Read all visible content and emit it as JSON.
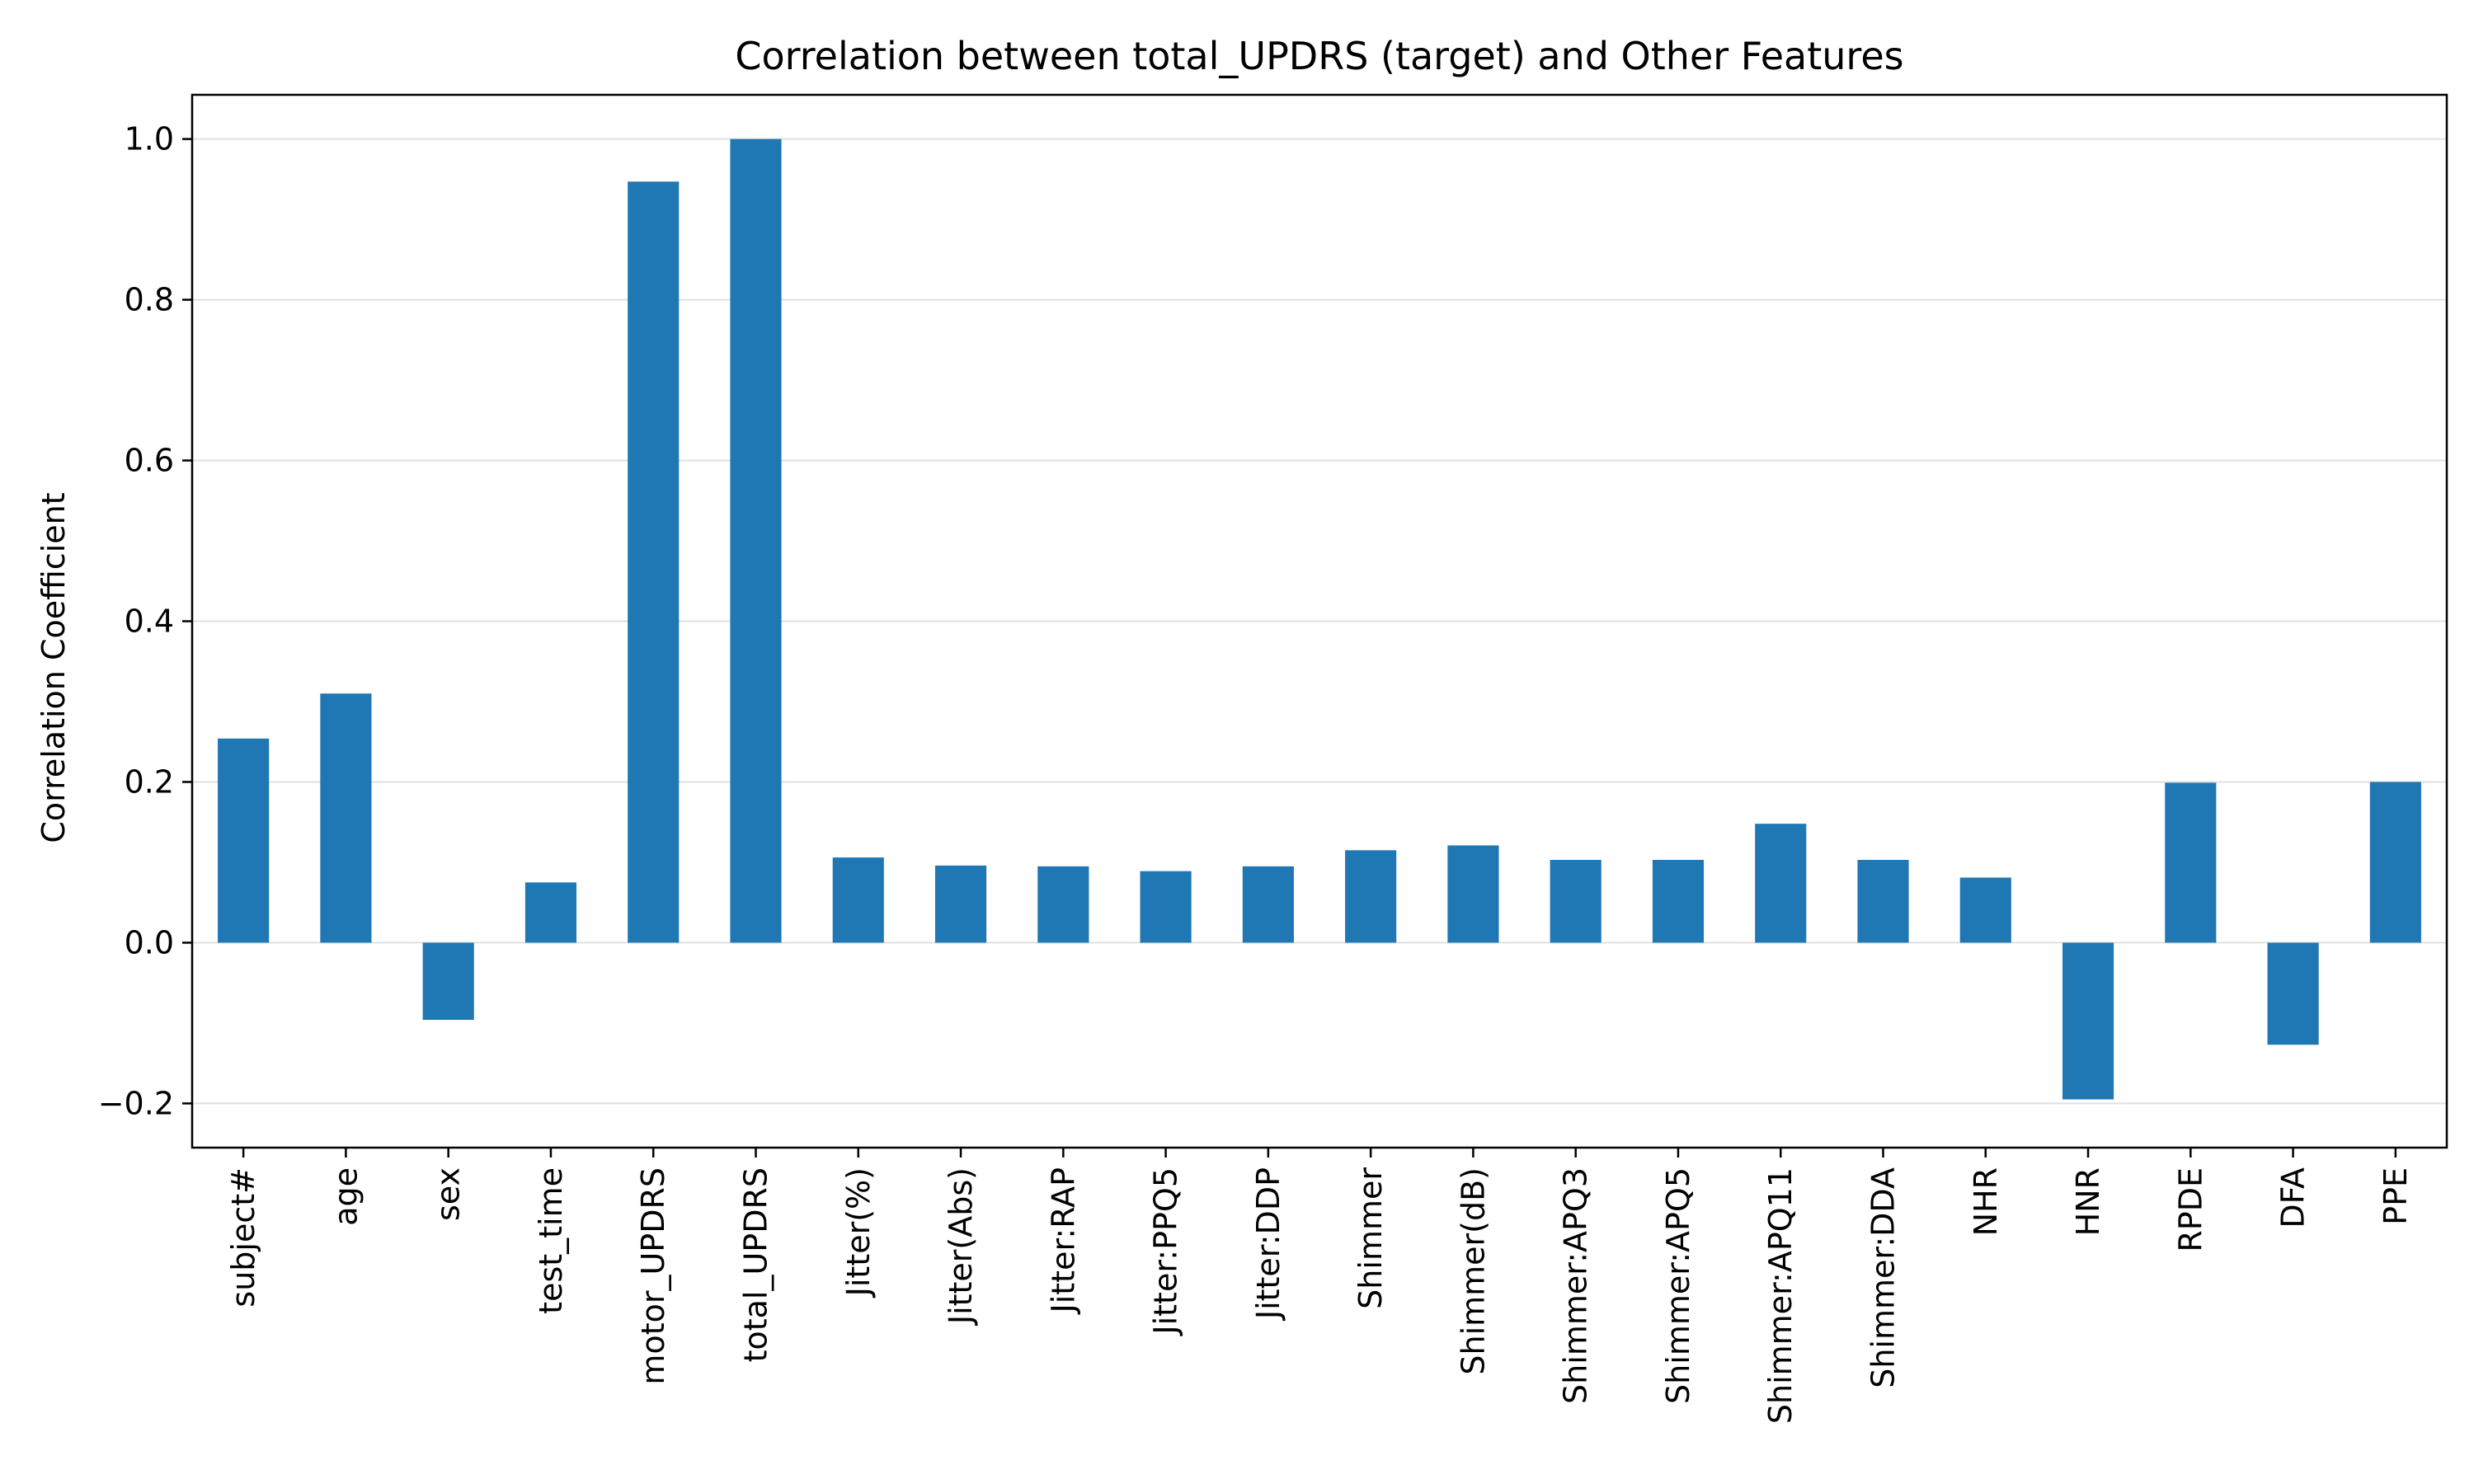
{
  "chart_data": {
    "type": "bar",
    "title": "Correlation between total_UPDRS (target) and Other Features",
    "xlabel": "",
    "ylabel": "Correlation Coefficient",
    "ylim": [
      -0.255,
      1.055
    ],
    "yticks": [
      -0.2,
      0.0,
      0.2,
      0.4,
      0.6,
      0.8,
      1.0
    ],
    "ytick_labels": [
      "−0.2",
      "0.0",
      "0.2",
      "0.4",
      "0.6",
      "0.8",
      "1.0"
    ],
    "grid": "horizontal",
    "bar_color": "#1f77b4",
    "categories": [
      "subject#",
      "age",
      "sex",
      "test_time",
      "motor_UPDRS",
      "total_UPDRS",
      "Jitter(%)",
      "Jitter(Abs)",
      "Jitter:RAP",
      "Jitter:PPQ5",
      "Jitter:DDP",
      "Shimmer",
      "Shimmer(dB)",
      "Shimmer:APQ3",
      "Shimmer:APQ5",
      "Shimmer:APQ11",
      "Shimmer:DDA",
      "NHR",
      "HNR",
      "RPDE",
      "DFA",
      "PPE"
    ],
    "values": [
      0.254,
      0.31,
      -0.096,
      0.075,
      0.947,
      1.0,
      0.106,
      0.096,
      0.095,
      0.089,
      0.095,
      0.115,
      0.121,
      0.103,
      0.103,
      0.148,
      0.103,
      0.081,
      -0.195,
      0.199,
      -0.127,
      0.2
    ]
  }
}
